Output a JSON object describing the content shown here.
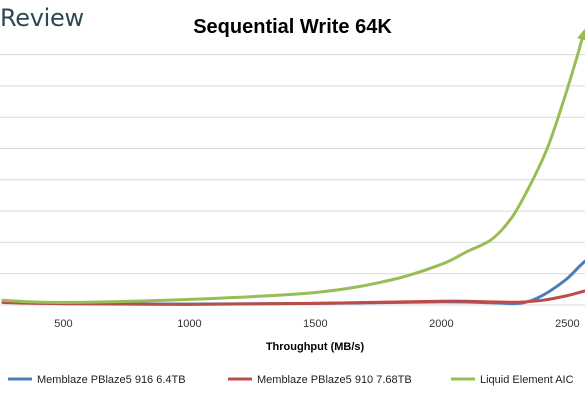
{
  "logo": "Review",
  "chart_data": {
    "type": "line",
    "title": "Sequential Write 64K",
    "xlabel": "Throughput (MB/s)",
    "ylabel": "",
    "xlim": [
      260,
      2570
    ],
    "ylim": [
      0,
      9.6
    ],
    "x_ticks": [
      500,
      1000,
      1500,
      2000,
      2500
    ],
    "y_gridlines": [
      0,
      1,
      2,
      3,
      4,
      5,
      6,
      7,
      8
    ],
    "grid": true,
    "legend_position": "bottom",
    "series": [
      {
        "name": "Memblaze PBlaze5 916 6.4TB",
        "color": "#4a7ebb",
        "points": [
          [
            260,
            0.1
          ],
          [
            500,
            0.05
          ],
          [
            1000,
            0.03
          ],
          [
            1500,
            0.05
          ],
          [
            2000,
            0.1
          ],
          [
            2200,
            0.07
          ],
          [
            2300,
            0.05
          ],
          [
            2350,
            0.12
          ],
          [
            2400,
            0.3
          ],
          [
            2450,
            0.55
          ],
          [
            2500,
            0.85
          ],
          [
            2550,
            1.25
          ],
          [
            2570,
            1.4
          ]
        ]
      },
      {
        "name": "Memblaze PBlaze5 910 7.68TB",
        "color": "#be4b48",
        "points": [
          [
            260,
            0.08
          ],
          [
            500,
            0.04
          ],
          [
            1000,
            0.02
          ],
          [
            1500,
            0.05
          ],
          [
            2000,
            0.12
          ],
          [
            2200,
            0.1
          ],
          [
            2300,
            0.09
          ],
          [
            2400,
            0.15
          ],
          [
            2500,
            0.3
          ],
          [
            2570,
            0.45
          ]
        ]
      },
      {
        "name": "Liquid Element AIC",
        "color": "#98bd55",
        "points": [
          [
            260,
            0.15
          ],
          [
            500,
            0.08
          ],
          [
            1000,
            0.18
          ],
          [
            1500,
            0.4
          ],
          [
            1800,
            0.8
          ],
          [
            2000,
            1.3
          ],
          [
            2100,
            1.7
          ],
          [
            2200,
            2.1
          ],
          [
            2280,
            2.8
          ],
          [
            2350,
            3.8
          ],
          [
            2420,
            5.0
          ],
          [
            2480,
            6.4
          ],
          [
            2530,
            7.7
          ],
          [
            2555,
            8.4
          ],
          [
            2565,
            8.7
          ]
        ]
      }
    ]
  }
}
